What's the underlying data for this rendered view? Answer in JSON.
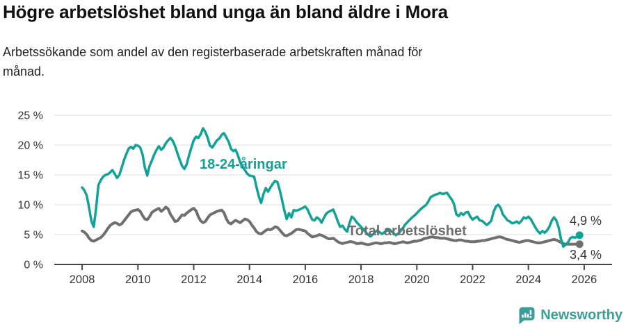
{
  "chart_data": {
    "type": "line",
    "title": "Högre arbetslöshet bland unga än bland äldre i Mora",
    "subtitle": "Arbetssökande som andel av den registerbaserade arbetskraften månad för\nmånad.",
    "xlabel": "",
    "ylabel": "",
    "ylim": [
      0,
      25
    ],
    "xlim": [
      2007,
      2027
    ],
    "grid": "horizontal",
    "legend_position": "inline-labels",
    "x_start_year": 2008,
    "x_step_months": 1,
    "x_ticks": [
      2008,
      2010,
      2012,
      2014,
      2016,
      2018,
      2020,
      2022,
      2024,
      2026
    ],
    "y_ticks": [
      {
        "value": 25,
        "label": "25 %"
      },
      {
        "value": 20,
        "label": "20 %"
      },
      {
        "value": 15,
        "label": "15 %"
      },
      {
        "value": 10,
        "label": "10 %"
      },
      {
        "value": 5,
        "label": "5 %"
      },
      {
        "value": 0,
        "label": "0 %"
      }
    ],
    "series": [
      {
        "name": "Total arbetslöshet",
        "color": "#6f6f6f",
        "stroke_width": 4,
        "end_label": "3,4 %",
        "end_value": 3.4,
        "values": [
          5.6,
          5.4,
          5.0,
          4.4,
          4.0,
          3.9,
          4.1,
          4.3,
          4.5,
          4.9,
          5.4,
          6.0,
          6.5,
          6.8,
          7.0,
          6.9,
          6.6,
          6.8,
          7.3,
          7.8,
          8.3,
          8.8,
          9.0,
          9.1,
          9.2,
          8.9,
          8.2,
          7.6,
          7.5,
          8.0,
          8.7,
          9.0,
          9.2,
          9.4,
          8.9,
          9.2,
          9.6,
          9.3,
          8.4,
          7.8,
          7.2,
          7.3,
          7.8,
          8.3,
          8.2,
          8.6,
          8.9,
          9.2,
          9.4,
          9.0,
          8.0,
          7.3,
          7.0,
          7.2,
          7.8,
          8.3,
          8.5,
          8.7,
          8.9,
          9.0,
          9.1,
          8.7,
          7.7,
          7.0,
          6.8,
          7.1,
          7.4,
          7.2,
          7.0,
          7.3,
          7.6,
          7.5,
          7.2,
          6.6,
          6.1,
          5.5,
          5.2,
          5.1,
          5.4,
          5.7,
          5.9,
          5.8,
          6.0,
          6.3,
          6.2,
          5.8,
          5.3,
          4.9,
          4.8,
          5.0,
          5.2,
          5.5,
          5.8,
          5.9,
          5.8,
          5.7,
          5.6,
          5.2,
          4.9,
          4.6,
          4.7,
          4.8,
          5.0,
          4.9,
          4.7,
          4.5,
          4.3,
          4.3,
          4.4,
          4.1,
          3.8,
          3.6,
          3.5,
          3.6,
          3.7,
          3.8,
          3.8,
          3.7,
          3.5,
          3.5,
          3.6,
          3.5,
          3.4,
          3.3,
          3.4,
          3.5,
          3.6,
          3.6,
          3.5,
          3.5,
          3.6,
          3.6,
          3.7,
          3.6,
          3.5,
          3.5,
          3.6,
          3.7,
          3.8,
          3.7,
          3.6,
          3.7,
          3.8,
          3.9,
          3.9,
          4.0,
          4.1,
          4.3,
          4.4,
          4.5,
          4.6,
          4.6,
          4.5,
          4.5,
          4.4,
          4.4,
          4.4,
          4.3,
          4.2,
          4.1,
          4.0,
          4.0,
          4.1,
          4.1,
          4.0,
          3.9,
          3.9,
          3.8,
          3.8,
          3.8,
          3.9,
          3.9,
          4.0,
          4.0,
          4.1,
          4.2,
          4.3,
          4.4,
          4.5,
          4.6,
          4.6,
          4.5,
          4.3,
          4.2,
          4.1,
          4.0,
          3.9,
          3.8,
          3.7,
          3.8,
          3.9,
          4.0,
          4.0,
          3.9,
          3.8,
          3.7,
          3.6,
          3.6,
          3.7,
          3.8,
          3.9,
          4.0,
          4.1,
          4.2,
          4.1,
          3.9,
          3.7,
          3.5,
          3.4,
          3.4,
          3.4,
          3.4,
          3.4,
          3.4,
          3.4
        ]
      },
      {
        "name": "18-24-åringar",
        "color": "#10a296",
        "stroke_width": 3.5,
        "end_label": "4,9 %",
        "end_value": 4.9,
        "values": [
          12.9,
          12.4,
          11.5,
          9.5,
          7.2,
          6.3,
          9.5,
          13.3,
          14.1,
          14.7,
          15.0,
          15.1,
          15.4,
          15.8,
          15.2,
          14.5,
          15.0,
          16.2,
          17.5,
          18.5,
          19.4,
          19.7,
          19.4,
          20.0,
          19.9,
          19.6,
          18.4,
          16.2,
          14.9,
          16.5,
          17.4,
          18.4,
          19.2,
          19.8,
          19.2,
          19.6,
          20.3,
          20.8,
          21.2,
          20.7,
          19.8,
          18.6,
          17.5,
          16.5,
          16.0,
          16.8,
          18.3,
          19.6,
          20.8,
          21.4,
          21.2,
          21.8,
          22.8,
          22.2,
          21.2,
          19.9,
          19.6,
          20.2,
          20.8,
          21.1,
          21.7,
          22.0,
          21.3,
          20.6,
          19.4,
          19.0,
          19.2,
          18.3,
          17.1,
          16.4,
          15.8,
          15.2,
          14.9,
          14.8,
          14.7,
          13.0,
          11.4,
          10.3,
          11.8,
          12.8,
          12.2,
          12.9,
          13.5,
          14.0,
          13.8,
          12.5,
          10.8,
          9.0,
          7.6,
          8.6,
          7.9,
          9.1,
          9.0,
          9.1,
          9.3,
          9.5,
          9.7,
          9.2,
          8.3,
          7.5,
          7.4,
          7.9,
          7.6,
          7.0,
          7.8,
          8.5,
          8.8,
          9.0,
          9.2,
          8.3,
          7.2,
          6.3,
          6.5,
          5.9,
          5.5,
          6.9,
          8.0,
          7.7,
          7.1,
          6.7,
          6.3,
          5.9,
          5.4,
          5.0,
          4.7,
          5.0,
          5.4,
          5.7,
          5.4,
          5.1,
          5.4,
          5.7,
          5.9,
          5.6,
          5.2,
          4.9,
          5.2,
          5.6,
          6.1,
          6.7,
          7.1,
          7.5,
          7.9,
          8.2,
          8.6,
          9.0,
          9.4,
          9.7,
          10.0,
          10.6,
          11.3,
          11.5,
          11.7,
          11.8,
          12.0,
          11.8,
          11.9,
          12.0,
          11.4,
          10.9,
          10.1,
          8.4,
          8.1,
          8.6,
          8.3,
          8.7,
          8.8,
          8.0,
          7.5,
          7.8,
          8.0,
          7.4,
          7.3,
          7.0,
          6.6,
          6.9,
          7.3,
          8.8,
          9.7,
          10.0,
          9.5,
          8.4,
          7.9,
          7.4,
          7.2,
          6.9,
          7.0,
          7.2,
          6.9,
          7.3,
          7.9,
          7.7,
          8.0,
          7.6,
          6.9,
          6.2,
          5.6,
          5.2,
          5.6,
          5.3,
          5.7,
          6.3,
          7.3,
          7.9,
          7.4,
          6.2,
          4.3,
          3.0,
          3.3,
          3.7,
          4.4,
          4.6,
          4.5,
          4.6,
          4.9
        ]
      }
    ],
    "colors": {
      "grid": "#dedede",
      "axis": "#444444",
      "tick_text": "#333333"
    }
  },
  "footer": {
    "brand": "Newsworthy",
    "logo_icon": "bar-chart-pin-icon",
    "brand_color": "#3a9e98"
  }
}
